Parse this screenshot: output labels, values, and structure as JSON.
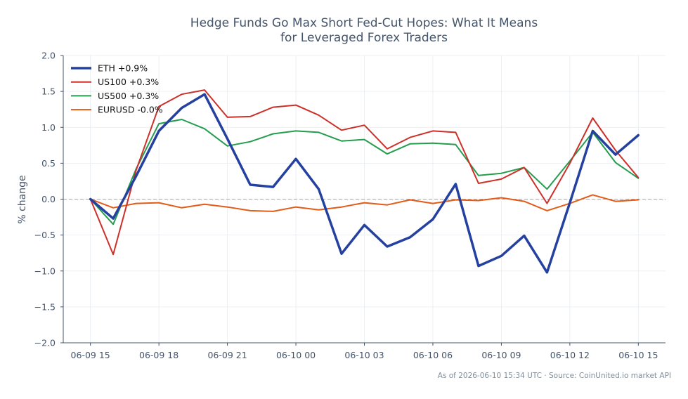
{
  "chart_data": {
    "type": "line",
    "title_line1": "Hedge Funds Go Max Short Fed-Cut Hopes: What It Means",
    "title_line2": "for Leveraged Forex Traders",
    "ylabel": "% change",
    "xlabel": "",
    "ylim": [
      -2.0,
      2.0
    ],
    "yticks": [
      2.0,
      1.5,
      1.0,
      0.5,
      0.0,
      -0.5,
      -1.0,
      -1.5,
      -2.0
    ],
    "ytick_labels": [
      "2.0",
      "1.5",
      "1.0",
      "0.5",
      "0.0",
      "−0.5",
      "−1.0",
      "−1.5",
      "−2.0"
    ],
    "x_tick_labels": [
      "06-09 15",
      "06-09 18",
      "06-09 21",
      "06-10 00",
      "06-10 03",
      "06-10 06",
      "06-10 09",
      "06-10 12",
      "06-10 15"
    ],
    "x_tick_hours": [
      0,
      3,
      6,
      9,
      12,
      15,
      18,
      21,
      24
    ],
    "x_hours": [
      0,
      1,
      2,
      3,
      4,
      5,
      6,
      7,
      8,
      9,
      10,
      11,
      12,
      13,
      14,
      15,
      16,
      17,
      18,
      19,
      20,
      21,
      22,
      23,
      24
    ],
    "grid": true,
    "legend_position": "top-left",
    "zero_line": 0.0,
    "series": [
      {
        "name": "ETH +0.9%",
        "color": "#2541a0",
        "values": [
          0.0,
          -0.27,
          0.32,
          0.95,
          1.27,
          1.46,
          0.84,
          0.2,
          0.17,
          0.56,
          0.14,
          -0.76,
          -0.36,
          -0.66,
          -0.53,
          -0.28,
          0.21,
          -0.93,
          -0.79,
          -0.51,
          -1.02,
          -0.05,
          0.95,
          0.62,
          0.89
        ]
      },
      {
        "name": "US100 +0.3%",
        "color": "#cc3029",
        "values": [
          0.0,
          -0.77,
          0.4,
          1.29,
          1.46,
          1.52,
          1.14,
          1.15,
          1.28,
          1.31,
          1.17,
          0.96,
          1.03,
          0.7,
          0.86,
          0.95,
          0.93,
          0.22,
          0.28,
          0.44,
          -0.06,
          0.5,
          1.13,
          0.68,
          0.3
        ]
      },
      {
        "name": "US500 +0.3%",
        "color": "#259d4e",
        "values": [
          0.0,
          -0.35,
          0.42,
          1.05,
          1.11,
          0.98,
          0.74,
          0.8,
          0.91,
          0.95,
          0.93,
          0.81,
          0.83,
          0.63,
          0.77,
          0.78,
          0.76,
          0.33,
          0.36,
          0.44,
          0.14,
          0.53,
          0.93,
          0.51,
          0.29
        ]
      },
      {
        "name": "EURUSD -0.0%",
        "color": "#e35b17",
        "values": [
          0.0,
          -0.12,
          -0.06,
          -0.05,
          -0.12,
          -0.07,
          -0.11,
          -0.16,
          -0.17,
          -0.11,
          -0.15,
          -0.11,
          -0.05,
          -0.08,
          -0.01,
          -0.06,
          -0.01,
          -0.02,
          0.02,
          -0.03,
          -0.16,
          -0.06,
          0.06,
          -0.03,
          -0.01
        ]
      }
    ]
  },
  "footer": {
    "note": "As of 2026-06-10 15:34 UTC · Source: CoinUnited.io market API"
  }
}
